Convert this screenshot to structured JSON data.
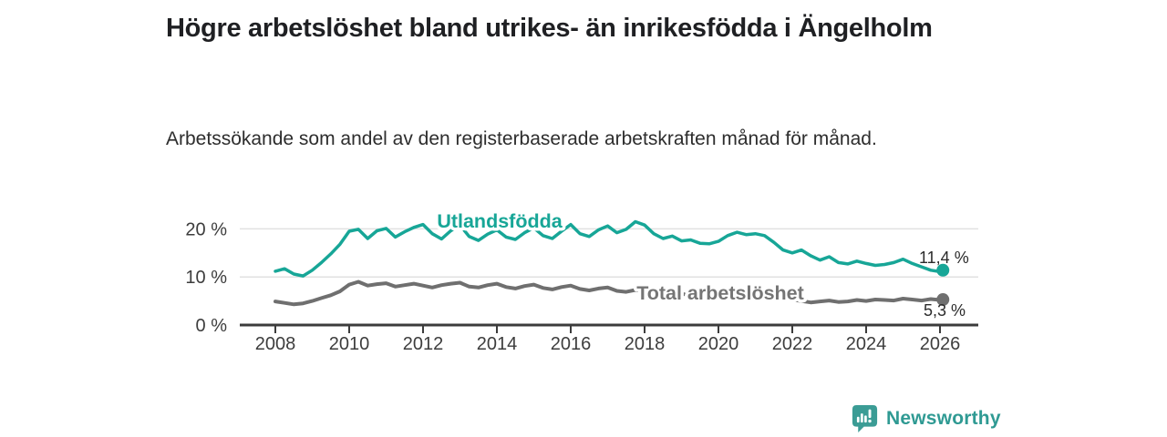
{
  "footer": {
    "brand": "Newsworthy"
  },
  "chart_data": {
    "type": "line",
    "title": "Högre arbetslöshet bland utrikes- än inrikesfödda i Ängelholm",
    "subtitle": "Arbetssökande som andel av den registerbaserade arbetskraften månad för månad.",
    "xlabel": "",
    "ylabel": "",
    "xlim": [
      2007.05,
      2027.05
    ],
    "ylim": [
      0,
      23
    ],
    "grid": "horizontal",
    "legend_position": "inline-labels",
    "x_ticks": [
      2008,
      2010,
      2012,
      2014,
      2016,
      2018,
      2020,
      2022,
      2024,
      2026
    ],
    "x_tick_labels": [
      "2008",
      "2010",
      "2012",
      "2014",
      "2016",
      "2018",
      "2020",
      "2022",
      "2024",
      "2026"
    ],
    "y_ticks": [
      0,
      10,
      20
    ],
    "y_tick_labels": [
      "0 %",
      "10 %",
      "20 %"
    ],
    "series": [
      {
        "name": "Utlandsfödda",
        "color": "#17a697",
        "x_start": 2008,
        "x_step": 0.25,
        "values": [
          11.2,
          11.7,
          10.6,
          10.2,
          11.4,
          13.0,
          14.8,
          16.8,
          19.5,
          19.9,
          18.0,
          19.6,
          20.1,
          18.3,
          19.4,
          20.3,
          20.9,
          19.0,
          17.9,
          19.6,
          20.8,
          18.4,
          17.6,
          18.9,
          19.8,
          18.3,
          17.8,
          19.2,
          20.2,
          18.6,
          18.0,
          19.5,
          20.9,
          19.0,
          18.4,
          19.8,
          20.6,
          19.2,
          19.9,
          21.5,
          20.8,
          19.0,
          18.0,
          18.5,
          17.5,
          17.7,
          17.0,
          16.9,
          17.4,
          18.6,
          19.3,
          18.8,
          19.0,
          18.6,
          17.2,
          15.6,
          15.0,
          15.6,
          14.4,
          13.5,
          14.2,
          13.0,
          12.7,
          13.3,
          12.8,
          12.4,
          12.6,
          13.0,
          13.7,
          12.8,
          12.1,
          11.4,
          11.1
        ],
        "end": {
          "x": 2026.08,
          "value": 11.4,
          "label": "11,4 %"
        }
      },
      {
        "name": "Total arbetslöshet",
        "color": "#6f6f6f",
        "x_start": 2008,
        "x_step": 0.25,
        "values": [
          4.9,
          4.6,
          4.3,
          4.5,
          5.0,
          5.6,
          6.2,
          7.0,
          8.4,
          9.0,
          8.2,
          8.5,
          8.7,
          8.0,
          8.3,
          8.6,
          8.2,
          7.8,
          8.3,
          8.6,
          8.8,
          8.0,
          7.8,
          8.3,
          8.6,
          7.9,
          7.6,
          8.1,
          8.4,
          7.7,
          7.4,
          7.9,
          8.2,
          7.5,
          7.2,
          7.6,
          7.8,
          7.1,
          6.9,
          7.3,
          7.0,
          6.6,
          6.4,
          6.7,
          6.5,
          6.2,
          6.0,
          6.3,
          6.2,
          7.0,
          7.3,
          7.0,
          6.8,
          6.4,
          6.0,
          5.6,
          5.3,
          5.0,
          4.7,
          4.9,
          5.1,
          4.8,
          4.9,
          5.2,
          5.0,
          5.3,
          5.2,
          5.1,
          5.5,
          5.3,
          5.1,
          5.4,
          5.2
        ],
        "end": {
          "x": 2026.08,
          "value": 5.3,
          "label": "5,3 %"
        }
      }
    ]
  }
}
